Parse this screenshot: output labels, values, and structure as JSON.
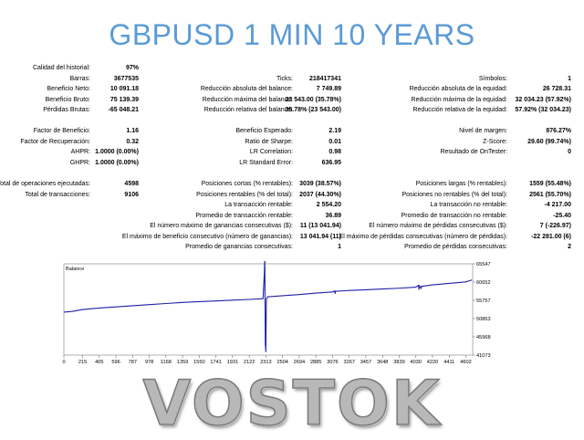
{
  "title": "GBPUSD 1 MIN 10 YEARS",
  "footer_text": "VOSTOK",
  "stats": [
    {
      "key": "calidad",
      "label": "Calidad del historial:",
      "value": "97%",
      "col": 0,
      "row": 0
    },
    {
      "key": "barras",
      "label": "Barras:",
      "value": "3677535",
      "col": 0,
      "row": 1
    },
    {
      "key": "ben_neto",
      "label": "Beneficio Neto:",
      "value": "10 091.18",
      "col": 0,
      "row": 2
    },
    {
      "key": "ben_bruto",
      "label": "Beneficio Bruto:",
      "value": "75 139.39",
      "col": 0,
      "row": 3
    },
    {
      "key": "perd_brutas",
      "label": "Pérdidas Brutas:",
      "value": "-65 048.21",
      "col": 0,
      "row": 4
    },
    {
      "key": "factor_ben",
      "label": "Factor de Beneficio:",
      "value": "1.16",
      "col": 0,
      "row": 6
    },
    {
      "key": "factor_rec",
      "label": "Factor de Recuperación:",
      "value": "0.32",
      "col": 0,
      "row": 7
    },
    {
      "key": "ahpr",
      "label": "AHPR:",
      "value": "1.0000 (0.00%)",
      "col": 0,
      "row": 8
    },
    {
      "key": "ghpr",
      "label": "GHPR:",
      "value": "1.0000 (0.00%)",
      "col": 0,
      "row": 9
    },
    {
      "key": "total_ops",
      "label": "Total de operaciones ejecutadas:",
      "value": "4598",
      "col": 0,
      "row": 11
    },
    {
      "key": "total_trans",
      "label": "Total de transacciones:",
      "value": "9106",
      "col": 0,
      "row": 12
    },
    {
      "key": "ticks",
      "label": "Ticks:",
      "value": "218417341",
      "col": 1,
      "row": 1
    },
    {
      "key": "red_abs_bal",
      "label": "Reducción absoluta del balance:",
      "value": "7 749.89",
      "col": 1,
      "row": 2
    },
    {
      "key": "red_max_bal",
      "label": "Reducción máxima del balance:",
      "value": "23 543.00 (35.78%)",
      "col": 1,
      "row": 3
    },
    {
      "key": "red_rel_bal",
      "label": "Reducción relativa del balance:",
      "value": "35.78% (23 543.00)",
      "col": 1,
      "row": 4
    },
    {
      "key": "ben_esperado",
      "label": "Beneficio Esperado:",
      "value": "2.19",
      "col": 1,
      "row": 6
    },
    {
      "key": "sharpe",
      "label": "Ratio de Sharpe:",
      "value": "0.01",
      "col": 1,
      "row": 7
    },
    {
      "key": "lr_corr",
      "label": "LR Correlation:",
      "value": "0.98",
      "col": 1,
      "row": 8
    },
    {
      "key": "lr_err",
      "label": "LR Standard Error:",
      "value": "636.95",
      "col": 1,
      "row": 9
    },
    {
      "key": "pos_cortas",
      "label": "Posiciones cortas (% rentables):",
      "value": "3039 (38.57%)",
      "col": 1,
      "row": 11
    },
    {
      "key": "pos_rentables",
      "label": "Posiciones rentables (% del total):",
      "value": "2037 (44.30%)",
      "col": 1,
      "row": 12
    },
    {
      "key": "trans_rentable",
      "label": "La transacción rentable:",
      "value": "2 554.20",
      "col": 1,
      "row": 13
    },
    {
      "key": "prom_rentable",
      "label": "Promedio de transacción rentable:",
      "value": "36.89",
      "col": 1,
      "row": 14
    },
    {
      "key": "max_gan_cons",
      "label": "El número máximo de ganancias consecutivas ($):",
      "value": "11 (13 041.94)",
      "col": 1,
      "row": 15
    },
    {
      "key": "max_ben_cons",
      "label": "El máximo de beneficio consecutivo (número de ganancias):",
      "value": "13 041.94 (11)",
      "col": 1,
      "row": 16
    },
    {
      "key": "prom_gan_cons",
      "label": "Promedio de ganancias consecutivas:",
      "value": "1",
      "col": 1,
      "row": 17
    },
    {
      "key": "simbolos",
      "label": "Símbolos:",
      "value": "1",
      "col": 2,
      "row": 1
    },
    {
      "key": "red_abs_eq",
      "label": "Reducción absoluta de la equidad:",
      "value": "26 728.31",
      "col": 2,
      "row": 2
    },
    {
      "key": "red_max_eq",
      "label": "Reducción máxima de la equidad:",
      "value": "32 034.23 (57.92%)",
      "col": 2,
      "row": 3
    },
    {
      "key": "red_rel_eq",
      "label": "Reducción relativa de la equidad:",
      "value": "57.92% (32 034.23)",
      "col": 2,
      "row": 4
    },
    {
      "key": "nivel_margen",
      "label": "Nivel de margen:",
      "value": "876.27%",
      "col": 2,
      "row": 6
    },
    {
      "key": "zscore",
      "label": "Z-Score:",
      "value": "29.60 (99.74%)",
      "col": 2,
      "row": 7
    },
    {
      "key": "ontester",
      "label": "Resultado de OnTester:",
      "value": "0",
      "col": 2,
      "row": 8
    },
    {
      "key": "pos_largas",
      "label": "Posiciones largas (% rentables):",
      "value": "1559 (55.48%)",
      "col": 2,
      "row": 11
    },
    {
      "key": "pos_no_rent",
      "label": "Posiciones no rentables (% del total):",
      "value": "2561 (55.70%)",
      "col": 2,
      "row": 12
    },
    {
      "key": "trans_no_rent",
      "label": "La transacción no rentable:",
      "value": "-4 217.00",
      "col": 2,
      "row": 13
    },
    {
      "key": "prom_no_rent",
      "label": "Promedio de transacción no rentable:",
      "value": "-25.40",
      "col": 2,
      "row": 14
    },
    {
      "key": "max_perd_cons",
      "label": "El número máximo de pérdidas consecutivas ($):",
      "value": "7 (-226.97)",
      "col": 2,
      "row": 15
    },
    {
      "key": "max_perd_cons2",
      "label": "El máximo de pérdidas consecutivas (número de pérdidas):",
      "value": "-22 281.00 (6)",
      "col": 2,
      "row": 16
    },
    {
      "key": "prom_perd_cons",
      "label": "Promedio de pérdidas consecutivas:",
      "value": "2",
      "col": 2,
      "row": 17
    }
  ],
  "chart_data": {
    "type": "line",
    "title": "Balance",
    "x_ticks": [
      0,
      215,
      405,
      596,
      787,
      978,
      1168,
      1359,
      1550,
      1741,
      1931,
      2122,
      2313,
      2504,
      2694,
      2885,
      3076,
      3267,
      3457,
      3648,
      3839,
      4030,
      4220,
      4411,
      4602
    ],
    "y_ticks": [
      41073,
      45968,
      50863,
      55757,
      60652,
      65547
    ],
    "xlim": [
      0,
      4680
    ],
    "ylim": [
      41073,
      65547
    ],
    "series": [
      {
        "color": "#1f1fa8",
        "x": [
          0,
          100,
          215,
          405,
          596,
          787,
          978,
          1168,
          1359,
          1550,
          1741,
          1931,
          2122,
          2280,
          2295,
          2300,
          2303,
          2306,
          2312,
          2318,
          2330,
          2504,
          2694,
          2885,
          3076,
          3100,
          3105,
          3110,
          3267,
          3457,
          3648,
          3839,
          4030,
          4060,
          4065,
          4070,
          4090,
          4095,
          4100,
          4220,
          4411,
          4602,
          4670
        ],
        "y": [
          52600,
          52800,
          53300,
          53700,
          54000,
          54300,
          54600,
          54900,
          55200,
          55400,
          55600,
          55800,
          56000,
          56200,
          63000,
          67400,
          56500,
          44000,
          42000,
          56000,
          56700,
          57000,
          57300,
          57700,
          58000,
          58300,
          57600,
          58200,
          58400,
          58600,
          58800,
          59000,
          59300,
          59800,
          58700,
          59700,
          58900,
          59600,
          59500,
          59900,
          60300,
          60700,
          61200
        ]
      }
    ]
  }
}
